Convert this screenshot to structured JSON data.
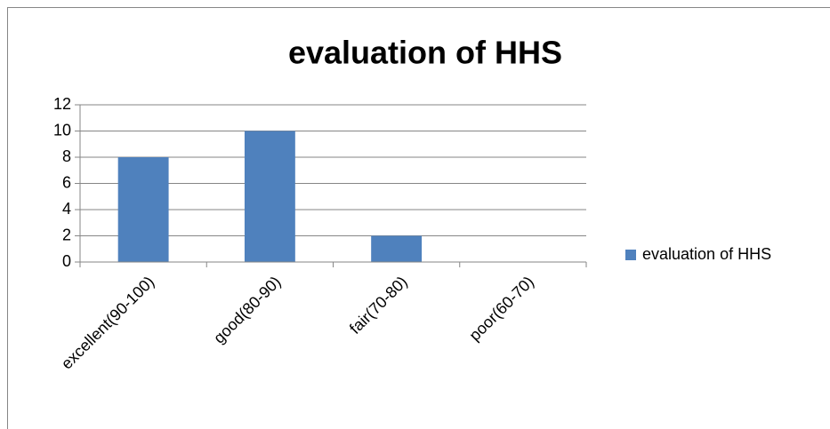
{
  "chart_data": {
    "type": "bar",
    "title": "evaluation of HHS",
    "categories": [
      "excellent(90-100)",
      "good(80-90)",
      "fair(70-80)",
      "poor(60-70)"
    ],
    "series": [
      {
        "name": "evaluation of HHS",
        "color": "#4f81bd",
        "values": [
          8,
          10,
          2,
          0
        ]
      }
    ],
    "ylim": [
      0,
      12
    ],
    "yticks": [
      0,
      2,
      4,
      6,
      8,
      10,
      12
    ],
    "grid": true,
    "legend": "right"
  }
}
